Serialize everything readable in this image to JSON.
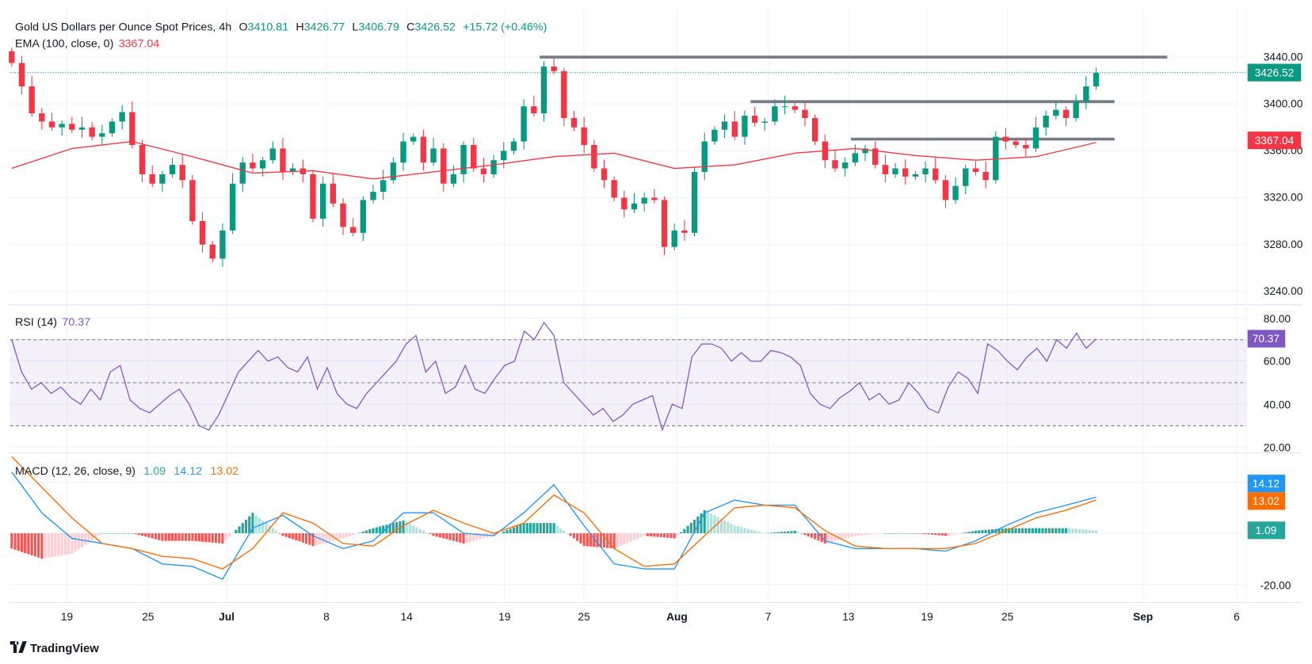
{
  "header": {
    "symbol": "Gold US Dollars per Ounce Spot Prices, 4h",
    "o_label": "O",
    "o": "3410.81",
    "h_label": "H",
    "h": "3426.77",
    "l_label": "L",
    "l": "3406.79",
    "c_label": "C",
    "c": "3426.52",
    "change": "+15.72 (+0.46%)"
  },
  "ema_legend": {
    "label": "EMA (100, close, 0)",
    "value": "3367.04"
  },
  "rsi_legend": {
    "label": "RSI (14)",
    "value": "70.37"
  },
  "macd_legend": {
    "label": "MACD (12, 26, close, 9)",
    "hist": "1.09",
    "macd": "14.12",
    "signal": "13.02"
  },
  "price_axis": {
    "ticks": [
      "3440.00",
      "3400.00",
      "3360.00",
      "3320.00",
      "3280.00",
      "3240.00"
    ],
    "last_price": "3426.52",
    "ema_price": "3367.04"
  },
  "rsi_axis": {
    "ticks": [
      "80.00",
      "60.00",
      "40.00",
      "20.00"
    ],
    "last": "70.37"
  },
  "macd_axis": {
    "ticks": [
      "-20.00"
    ],
    "macd": "14.12",
    "signal": "13.02",
    "hist": "1.09"
  },
  "x_axis": {
    "labels": [
      "19",
      "25",
      "Jul",
      "8",
      "14",
      "19",
      "25",
      "Aug",
      "7",
      "13",
      "19",
      "25",
      "Sep",
      "6"
    ]
  },
  "branding": {
    "logo": "TradingView"
  },
  "colors": {
    "up": "#089981",
    "down": "#F23645",
    "ema": "#F23645",
    "rsi": "#7E57C2",
    "macd": "#2196F3",
    "signal": "#FF6D00",
    "hist_up_strong": "#26A69A",
    "hist_up_weak": "#B2DFDB",
    "hist_down_strong": "#FF5252",
    "hist_down_weak": "#FFCDD2",
    "levels": "#787B86"
  },
  "chart_data": [
    {
      "type": "candlestick",
      "title": "Gold US Dollars per Ounce Spot Prices, 4h",
      "ylim": [
        3220,
        3450
      ],
      "close": [
        3435,
        3415,
        3392,
        3385,
        3380,
        3383,
        3378,
        3380,
        3372,
        3375,
        3385,
        3393,
        3365,
        3340,
        3332,
        3340,
        3348,
        3335,
        3300,
        3280,
        3268,
        3292,
        3332,
        3350,
        3345,
        3352,
        3362,
        3342,
        3345,
        3340,
        3302,
        3332,
        3315,
        3295,
        3290,
        3318,
        3325,
        3335,
        3350,
        3368,
        3372,
        3350,
        3362,
        3332,
        3340,
        3365,
        3345,
        3340,
        3352,
        3360,
        3368,
        3398,
        3392,
        3432,
        3428,
        3388,
        3380,
        3365,
        3345,
        3335,
        3320,
        3310,
        3315,
        3320,
        3318,
        3278,
        3292,
        3290,
        3342,
        3368,
        3378,
        3385,
        3372,
        3390,
        3384,
        3385,
        3398,
        3398,
        3395,
        3388,
        3368,
        3352,
        3345,
        3350,
        3358,
        3362,
        3348,
        3340,
        3345,
        3338,
        3340,
        3345,
        3335,
        3318,
        3330,
        3345,
        3342,
        3335,
        3372,
        3368,
        3365,
        3362,
        3380,
        3390,
        3395,
        3388,
        3402,
        3415,
        3426.52
      ],
      "ema100": [
        3345,
        3362,
        3368,
        3355,
        3341,
        3343,
        3336,
        3342,
        3348,
        3355,
        3358,
        3345,
        3348,
        3358,
        3362,
        3356,
        3352,
        3355,
        3367.04
      ],
      "horizontal_levels": [
        3440,
        3402,
        3370
      ]
    },
    {
      "type": "line",
      "title": "RSI (14)",
      "ylim": [
        15,
        85
      ],
      "bands": [
        30,
        50,
        70
      ],
      "values": [
        70,
        55,
        47,
        50,
        45,
        48,
        43,
        40,
        47,
        42,
        55,
        58,
        42,
        38,
        36,
        40,
        44,
        47,
        40,
        30,
        28,
        35,
        45,
        55,
        60,
        65,
        60,
        62,
        57,
        55,
        62,
        47,
        57,
        45,
        40,
        38,
        45,
        50,
        55,
        60,
        68,
        72,
        55,
        60,
        45,
        48,
        58,
        47,
        45,
        52,
        58,
        60,
        74,
        70,
        78,
        72,
        50,
        45,
        40,
        35,
        38,
        32,
        35,
        40,
        42,
        44,
        28,
        40,
        38,
        62,
        68,
        68,
        66,
        60,
        64,
        60,
        60,
        65,
        64,
        62,
        58,
        45,
        40,
        38,
        43,
        46,
        50,
        42,
        45,
        40,
        42,
        50,
        45,
        38,
        36,
        48,
        55,
        52,
        45,
        68,
        65,
        60,
        56,
        62,
        66,
        60,
        70,
        66,
        73,
        66,
        70.37
      ]
    },
    {
      "type": "line",
      "title": "MACD (12, 26, close, 9)",
      "series": [
        {
          "name": "MACD",
          "values": [
            24,
            8,
            -2,
            -4,
            -6,
            -12,
            -13,
            -18,
            2,
            7,
            -1,
            -6,
            -3,
            8,
            8,
            0,
            -1,
            8,
            19,
            3,
            -12,
            -14,
            -14,
            8,
            13,
            11,
            11,
            -3,
            -6,
            -6,
            -6,
            -7,
            -3,
            3,
            8,
            11,
            14.12
          ]
        },
        {
          "name": "Signal",
          "values": [
            30,
            18,
            6,
            -4,
            -6,
            -9,
            -10,
            -14,
            -6,
            8,
            4,
            -4,
            -5,
            3,
            9,
            4,
            0,
            4,
            15,
            8,
            -6,
            -13,
            -12,
            -1,
            10,
            11,
            10,
            1,
            -5,
            -6,
            -6,
            -6,
            -4,
            1,
            6,
            9,
            13.02
          ]
        }
      ],
      "histogram_last": 1.09
    }
  ]
}
